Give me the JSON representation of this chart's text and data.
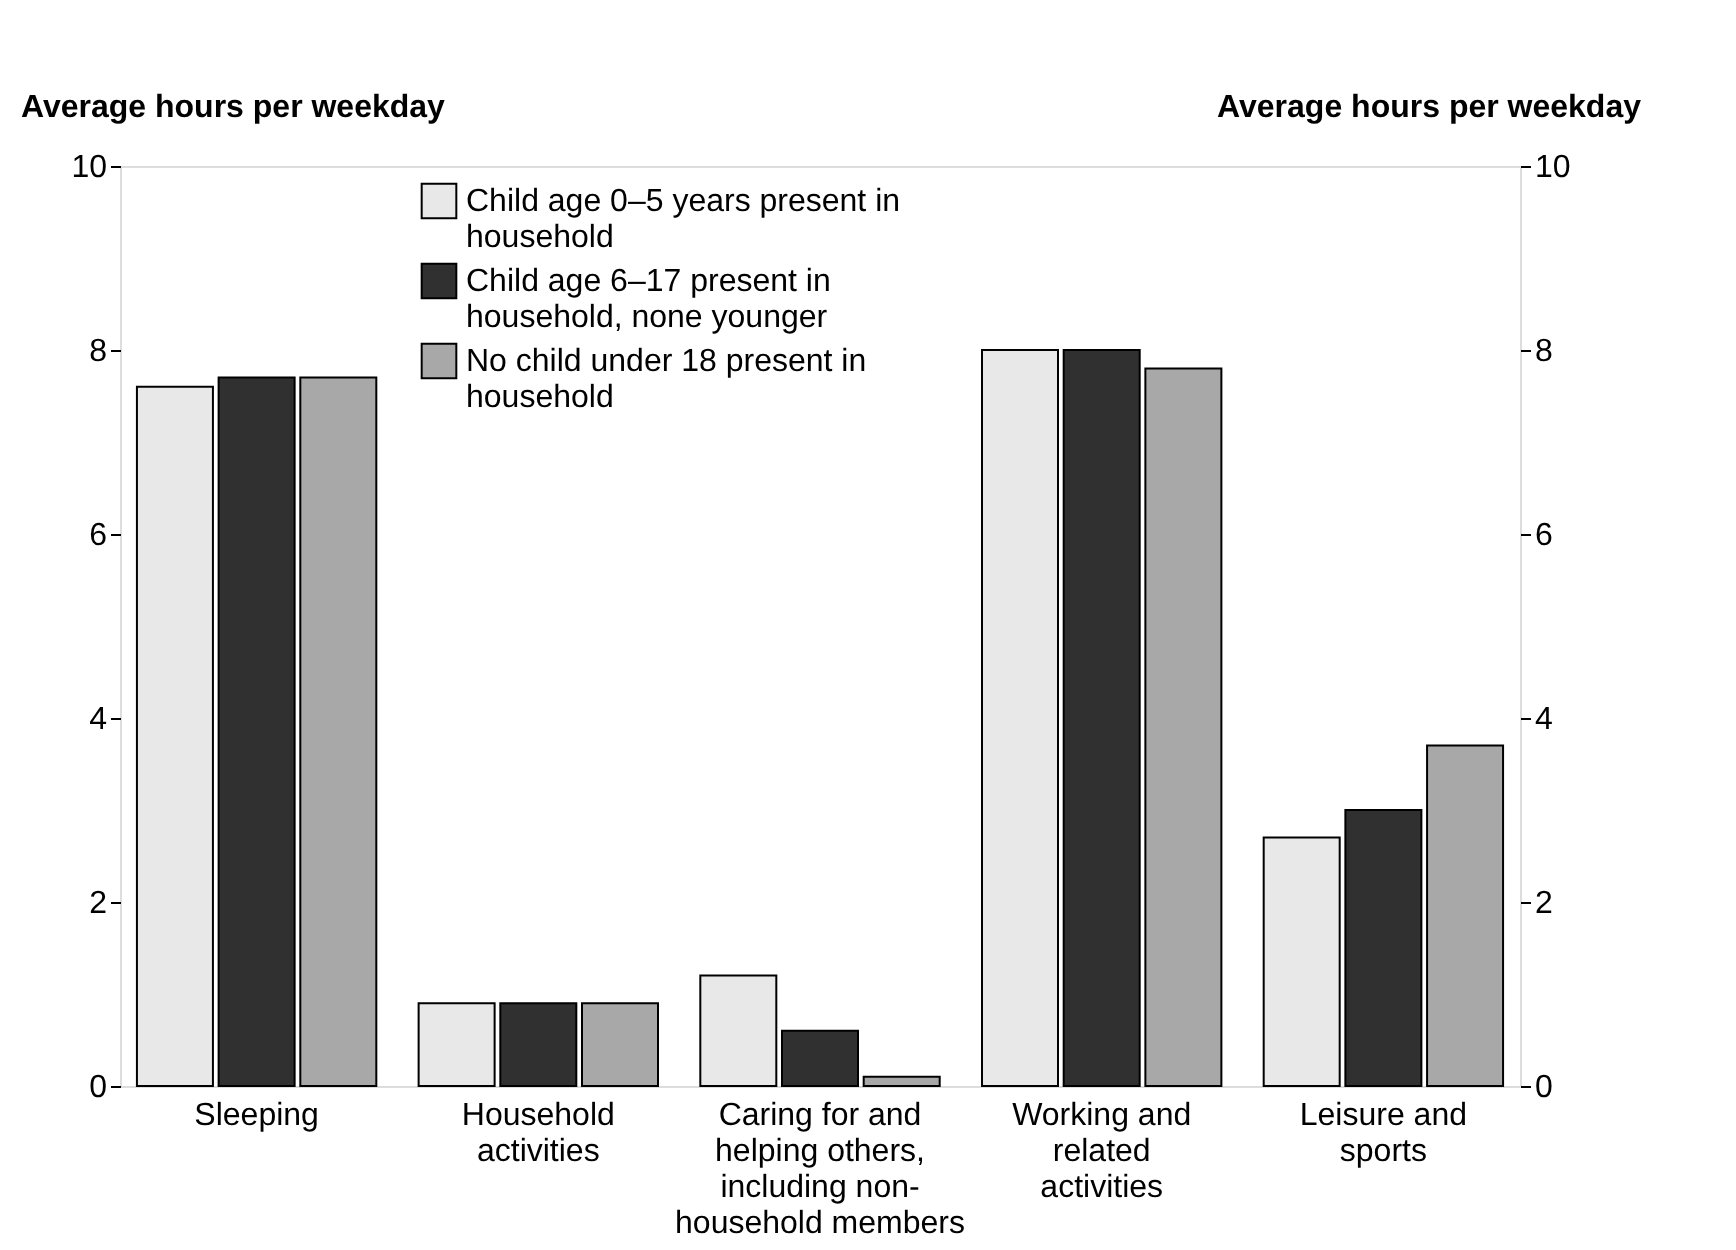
{
  "chart_data": {
    "type": "bar",
    "categories": [
      "Sleeping",
      "Household activities",
      "Caring for and helping others, including non-household members",
      "Working and related activities",
      "Leisure and sports"
    ],
    "series": [
      {
        "name": "Child age 0–5 years present in household",
        "color": "#e8e8e8",
        "values": [
          7.6,
          0.9,
          1.2,
          8.0,
          2.7
        ]
      },
      {
        "name": "Child age 6–17 present in household, none younger",
        "color": "#303030",
        "values": [
          7.7,
          0.9,
          0.6,
          8.0,
          3.0
        ]
      },
      {
        "name": "No child under 18 present in household",
        "color": "#a8a8a8",
        "values": [
          7.7,
          0.9,
          0.1,
          7.8,
          3.7
        ]
      }
    ],
    "ylabel": "Average hours per weekday",
    "y2label": "Average hours per weekday",
    "ylim": [
      0,
      10
    ],
    "yticks": [
      0,
      2,
      4,
      6,
      8,
      10
    ],
    "y2lim": [
      0,
      10
    ],
    "y2ticks": [
      0,
      2,
      4,
      6,
      8,
      10
    ],
    "grid": false,
    "legend": "top left"
  }
}
